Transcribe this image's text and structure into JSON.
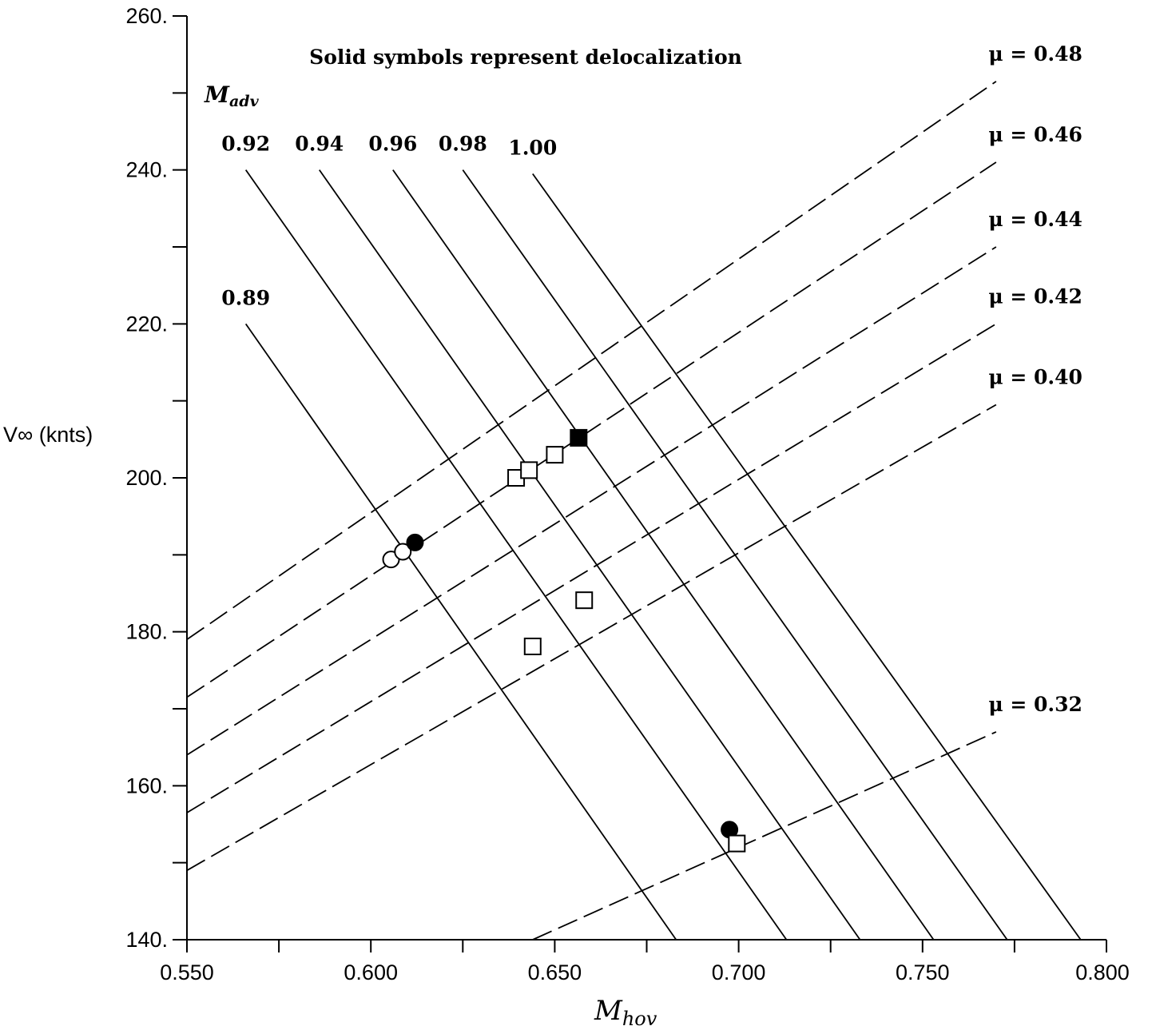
{
  "chart_data": {
    "type": "line",
    "annotation": "Solid symbols represent delocalization",
    "xlabel": "M",
    "xlabel_sub": "hov",
    "ylabel": "V∞ (knts)",
    "xlim": [
      0.55,
      0.8
    ],
    "ylim": [
      140,
      260
    ],
    "x_ticks": [
      "0.550",
      "0.600",
      "0.650",
      "0.700",
      "0.750",
      "0.800"
    ],
    "y_ticks": [
      "140.",
      "160.",
      "180.",
      "200.",
      "220.",
      "240.",
      "260."
    ],
    "madv_group_label": "M",
    "madv_group_label_sub": "adv",
    "madv_lines": [
      {
        "label": "0.89",
        "points": [
          [
            0.566,
            220.0
          ],
          [
            0.683,
            140.0
          ]
        ]
      },
      {
        "label": "0.92",
        "points": [
          [
            0.566,
            240.0
          ],
          [
            0.713,
            140.0
          ]
        ]
      },
      {
        "label": "0.94",
        "points": [
          [
            0.586,
            240.0
          ],
          [
            0.733,
            140.0
          ]
        ]
      },
      {
        "label": "0.96",
        "points": [
          [
            0.606,
            240.0
          ],
          [
            0.753,
            140.0
          ]
        ]
      },
      {
        "label": "0.98",
        "points": [
          [
            0.625,
            240.0
          ],
          [
            0.773,
            140.0
          ]
        ]
      },
      {
        "label": "1.00",
        "points": [
          [
            0.644,
            239.5
          ],
          [
            0.793,
            140.0
          ]
        ]
      }
    ],
    "mu_lines": [
      {
        "label": "μ = 0.48",
        "points": [
          [
            0.55,
            179.0
          ],
          [
            0.77,
            251.5
          ]
        ]
      },
      {
        "label": "μ = 0.46",
        "points": [
          [
            0.55,
            171.5
          ],
          [
            0.77,
            241.0
          ]
        ]
      },
      {
        "label": "μ = 0.44",
        "points": [
          [
            0.55,
            164.0
          ],
          [
            0.77,
            230.0
          ]
        ]
      },
      {
        "label": "μ = 0.42",
        "points": [
          [
            0.55,
            156.5
          ],
          [
            0.77,
            220.0
          ]
        ]
      },
      {
        "label": "μ = 0.40",
        "points": [
          [
            0.55,
            149.0
          ],
          [
            0.77,
            209.5
          ]
        ]
      },
      {
        "label": "μ = 0.32",
        "points": [
          [
            0.644,
            140.0
          ],
          [
            0.77,
            167.0
          ]
        ]
      }
    ],
    "points": [
      {
        "marker": "circle",
        "filled": false,
        "x": 0.6055,
        "y": 189.4
      },
      {
        "marker": "circle",
        "filled": false,
        "x": 0.6087,
        "y": 190.4
      },
      {
        "marker": "circle",
        "filled": true,
        "x": 0.612,
        "y": 191.6
      },
      {
        "marker": "square",
        "filled": false,
        "x": 0.6395,
        "y": 200.0
      },
      {
        "marker": "square",
        "filled": false,
        "x": 0.643,
        "y": 201.0
      },
      {
        "marker": "square",
        "filled": false,
        "x": 0.65,
        "y": 203.0
      },
      {
        "marker": "square",
        "filled": true,
        "x": 0.6565,
        "y": 205.2
      },
      {
        "marker": "square",
        "filled": false,
        "x": 0.658,
        "y": 184.1
      },
      {
        "marker": "square",
        "filled": false,
        "x": 0.644,
        "y": 178.1
      },
      {
        "marker": "circle",
        "filled": true,
        "x": 0.6975,
        "y": 154.3
      },
      {
        "marker": "square",
        "filled": false,
        "x": 0.6995,
        "y": 152.5
      }
    ]
  }
}
